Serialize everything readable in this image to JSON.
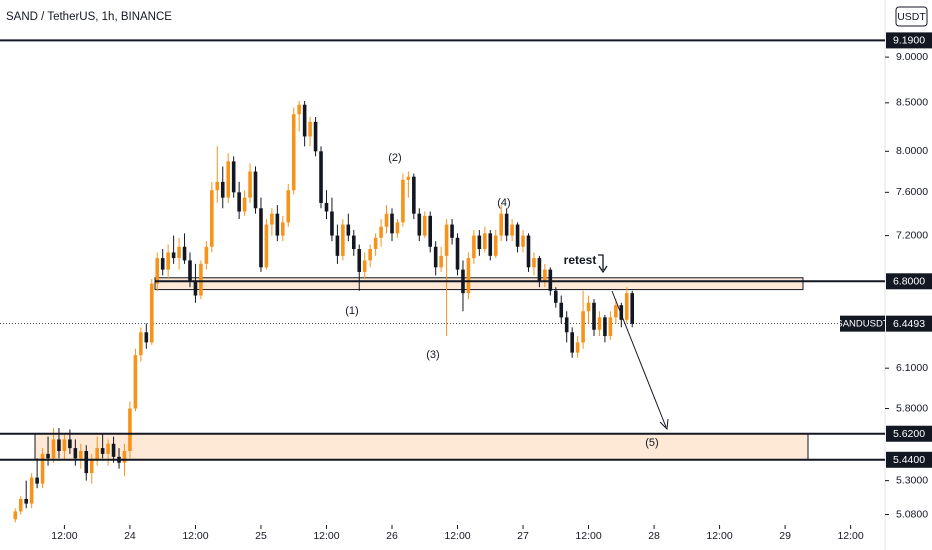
{
  "chart_data": {
    "type": "candlestick",
    "title": "SAND / TetherUS, 1h, BINANCE",
    "currency": "USDT",
    "symbol": "SANDUSDT",
    "log_scale": true,
    "up_color": "#f7931a",
    "down_color": "#131722",
    "ylim": [
      5.014,
      9.666
    ],
    "yticks": [
      {
        "value": 9.0,
        "label": "9.0000"
      },
      {
        "value": 8.5,
        "label": "8.5000"
      },
      {
        "value": 8.0,
        "label": "8.0000"
      },
      {
        "value": 7.6,
        "label": "7.6000"
      },
      {
        "value": 7.2,
        "label": "7.2000"
      },
      {
        "value": 6.1,
        "label": "6.1000"
      },
      {
        "value": 5.8,
        "label": "5.8000"
      },
      {
        "value": 5.3,
        "label": "5.3000"
      },
      {
        "value": 5.08,
        "label": "5.0800"
      }
    ],
    "xlim": [
      0.2,
      162.3
    ],
    "xticks": [
      {
        "value": 12,
        "label": "12:00"
      },
      {
        "value": 24,
        "label": "24"
      },
      {
        "value": 36,
        "label": "12:00"
      },
      {
        "value": 48,
        "label": "25"
      },
      {
        "value": 60,
        "label": "12:00"
      },
      {
        "value": 72,
        "label": "26"
      },
      {
        "value": 84,
        "label": "12:00"
      },
      {
        "value": 96,
        "label": "27"
      },
      {
        "value": 108,
        "label": "12:00"
      },
      {
        "value": 120,
        "label": "28"
      },
      {
        "value": 132,
        "label": "12:00"
      },
      {
        "value": 144,
        "label": "29"
      },
      {
        "value": 156,
        "label": "12:00"
      }
    ],
    "levels": [
      {
        "value": 9.19,
        "label": "9.1900"
      },
      {
        "value": 6.8,
        "label": "6.8000"
      },
      {
        "value": 5.62,
        "label": "5.6200"
      },
      {
        "value": 5.44,
        "label": "5.4400"
      }
    ],
    "zones": [
      {
        "low": 6.73,
        "high": 6.83
      },
      {
        "low": 5.44,
        "high": 5.62
      }
    ],
    "last_price": {
      "value": 6.4493,
      "label": "6.4493"
    },
    "annotations": [
      "(1)",
      "(2)",
      "(3)",
      "(4)",
      "(5)",
      "retest"
    ],
    "x": [
      3,
      4,
      5,
      6,
      7,
      8,
      9,
      10,
      11,
      12,
      13,
      14,
      15,
      16,
      17,
      18,
      19,
      20,
      21,
      22,
      23,
      24,
      25,
      26,
      27,
      28,
      29,
      30,
      31,
      32,
      33,
      34,
      35,
      36,
      37,
      38,
      39,
      40,
      41,
      42,
      43,
      44,
      45,
      46,
      47,
      48,
      49,
      50,
      51,
      52,
      53,
      54,
      55,
      56,
      57,
      58,
      59,
      60,
      61,
      62,
      63,
      64,
      65,
      66,
      67,
      68,
      69,
      70,
      71,
      72,
      73,
      74,
      75,
      76,
      77,
      78,
      79,
      80,
      81,
      82,
      83,
      84,
      85,
      86,
      87,
      88,
      89,
      90,
      91,
      92,
      93,
      94,
      95,
      96,
      97,
      98,
      99,
      100,
      101,
      102,
      103,
      104,
      105,
      106,
      107,
      108,
      109,
      110,
      111,
      112,
      113,
      114,
      115,
      116
    ],
    "open": [
      5.05,
      5.1,
      5.18,
      5.15,
      5.32,
      5.28,
      5.48,
      5.45,
      5.58,
      5.5,
      5.58,
      5.52,
      5.45,
      5.5,
      5.35,
      5.44,
      5.52,
      5.48,
      5.55,
      5.46,
      5.42,
      5.5,
      5.8,
      6.2,
      6.38,
      6.3,
      6.78,
      7.0,
      6.9,
      7.05,
      7.0,
      7.1,
      6.98,
      6.8,
      6.68,
      6.95,
      7.1,
      7.62,
      7.7,
      7.55,
      7.9,
      7.6,
      7.42,
      7.55,
      7.8,
      7.45,
      6.92,
      7.3,
      7.4,
      7.2,
      7.32,
      7.62,
      8.38,
      8.48,
      8.15,
      8.3,
      8.0,
      7.5,
      7.42,
      7.2,
      7.02,
      7.3,
      7.2,
      7.08,
      6.88,
      6.98,
      7.08,
      7.18,
      7.28,
      7.4,
      7.22,
      7.32,
      7.72,
      7.75,
      7.4,
      7.2,
      7.38,
      7.1,
      6.92,
      7.02,
      7.3,
      7.18,
      6.9,
      6.7,
      7.0,
      7.2,
      7.08,
      7.22,
      7.02,
      7.2,
      7.4,
      7.2,
      7.3,
      7.1,
      7.2,
      6.92,
      7.0,
      6.8,
      6.9,
      6.72,
      6.62,
      6.5,
      6.38,
      6.22,
      6.3,
      6.55,
      6.62,
      6.4,
      6.5,
      6.35,
      6.5,
      6.6,
      6.48,
      6.7
    ],
    "high": [
      5.12,
      5.2,
      5.3,
      5.35,
      5.45,
      5.52,
      5.6,
      5.66,
      5.66,
      5.62,
      5.65,
      5.58,
      5.55,
      5.54,
      5.48,
      5.6,
      5.62,
      5.58,
      5.6,
      5.52,
      5.55,
      5.85,
      6.25,
      6.42,
      6.45,
      6.82,
      7.05,
      7.08,
      7.12,
      7.2,
      7.18,
      7.22,
      7.05,
      6.95,
      6.98,
      7.15,
      7.7,
      8.05,
      7.85,
      7.98,
      7.95,
      7.7,
      7.62,
      7.88,
      7.85,
      7.55,
      7.35,
      7.45,
      7.48,
      7.38,
      7.68,
      8.45,
      8.52,
      8.52,
      8.35,
      8.35,
      8.05,
      7.62,
      7.55,
      7.3,
      7.35,
      7.4,
      7.25,
      7.12,
      7.05,
      7.12,
      7.22,
      7.35,
      7.48,
      7.45,
      7.35,
      7.78,
      7.8,
      7.78,
      7.45,
      7.42,
      7.42,
      7.15,
      7.1,
      7.35,
      7.35,
      7.22,
      6.98,
      7.05,
      7.25,
      7.25,
      7.28,
      7.25,
      7.25,
      7.48,
      7.45,
      7.35,
      7.32,
      7.25,
      7.22,
      7.05,
      7.02,
      6.95,
      6.92,
      6.75,
      6.68,
      6.55,
      6.42,
      6.35,
      6.72,
      6.68,
      6.65,
      6.55,
      6.52,
      6.55,
      6.65,
      6.62,
      6.75,
      6.72
    ],
    "low": [
      5.03,
      5.08,
      5.12,
      5.12,
      5.25,
      5.25,
      5.4,
      5.42,
      5.45,
      5.44,
      5.48,
      5.4,
      5.38,
      5.3,
      5.28,
      5.4,
      5.45,
      5.4,
      5.42,
      5.38,
      5.33,
      5.45,
      5.78,
      6.15,
      6.25,
      6.28,
      6.72,
      6.85,
      6.82,
      6.95,
      6.9,
      6.95,
      6.75,
      6.62,
      6.65,
      6.9,
      7.05,
      7.5,
      7.45,
      7.5,
      7.55,
      7.35,
      7.38,
      7.5,
      7.4,
      6.88,
      6.9,
      7.2,
      7.15,
      7.15,
      7.28,
      7.58,
      8.2,
      8.05,
      8.05,
      7.95,
      7.45,
      7.35,
      7.15,
      6.95,
      6.98,
      7.15,
      7.02,
      6.72,
      6.82,
      6.92,
      7.02,
      7.1,
      7.22,
      7.15,
      7.18,
      7.28,
      7.55,
      7.35,
      7.15,
      7.18,
      7.05,
      6.85,
      6.88,
      6.35,
      7.12,
      6.85,
      6.55,
      6.65,
      6.95,
      7.02,
      7.05,
      6.98,
      7.0,
      7.15,
      7.15,
      7.15,
      7.05,
      7.05,
      6.88,
      6.85,
      6.75,
      6.75,
      6.68,
      6.58,
      6.45,
      6.3,
      6.18,
      6.18,
      6.25,
      6.45,
      6.35,
      6.35,
      6.3,
      6.32,
      6.45,
      6.42,
      6.45,
      6.42
    ],
    "close": [
      5.1,
      5.18,
      5.15,
      5.32,
      5.28,
      5.48,
      5.45,
      5.58,
      5.5,
      5.58,
      5.52,
      5.45,
      5.5,
      5.35,
      5.44,
      5.52,
      5.48,
      5.55,
      5.46,
      5.42,
      5.5,
      5.8,
      6.2,
      6.38,
      6.3,
      6.78,
      7.0,
      6.9,
      7.05,
      7.0,
      7.1,
      6.98,
      6.8,
      6.68,
      6.95,
      7.1,
      7.62,
      7.7,
      7.55,
      7.9,
      7.6,
      7.42,
      7.55,
      7.8,
      7.45,
      6.92,
      7.3,
      7.4,
      7.2,
      7.32,
      7.62,
      8.38,
      8.48,
      8.15,
      8.3,
      8.0,
      7.5,
      7.42,
      7.2,
      7.02,
      7.3,
      7.2,
      7.08,
      6.88,
      6.98,
      7.08,
      7.18,
      7.28,
      7.4,
      7.22,
      7.32,
      7.72,
      7.75,
      7.4,
      7.2,
      7.38,
      7.1,
      6.92,
      7.02,
      7.3,
      7.18,
      6.9,
      6.7,
      7.0,
      7.2,
      7.08,
      7.22,
      7.02,
      7.2,
      7.4,
      7.2,
      7.3,
      7.1,
      7.2,
      6.92,
      7.0,
      6.8,
      6.9,
      6.72,
      6.62,
      6.5,
      6.38,
      6.22,
      6.3,
      6.55,
      6.62,
      6.4,
      6.5,
      6.35,
      6.5,
      6.6,
      6.48,
      6.7,
      6.4493
    ]
  }
}
